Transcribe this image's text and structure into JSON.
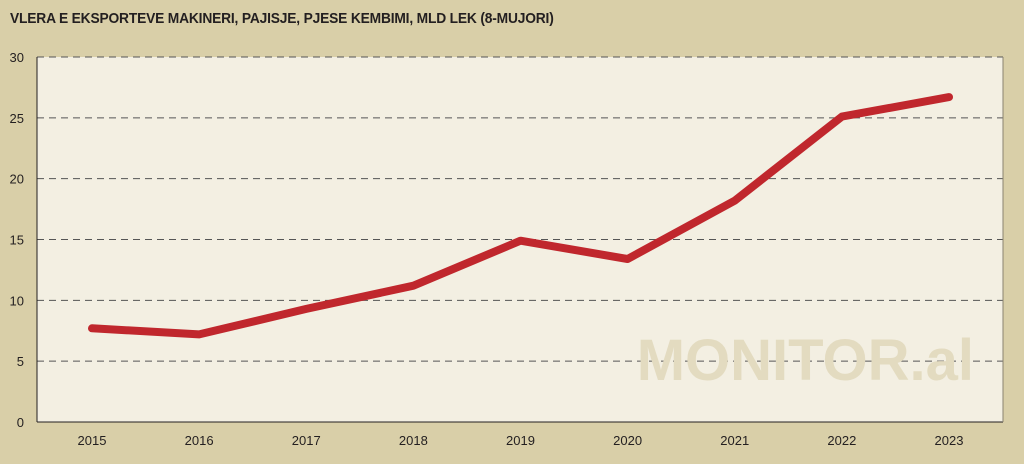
{
  "chart_data": {
    "type": "line",
    "title": "VLERA E EKSPORTEVE MAKINERI, PAJISJE, PJESE KEMBIMI, MLD LEK (8-MUJORI)",
    "xlabel": "",
    "ylabel": "",
    "x": [
      "2015",
      "2016",
      "2017",
      "2018",
      "2019",
      "2020",
      "2021",
      "2022",
      "2023"
    ],
    "series": [
      {
        "values": [
          7.7,
          7.2,
          9.3,
          11.2,
          14.9,
          13.4,
          18.2,
          25.1,
          26.7
        ]
      }
    ],
    "ylim": [
      0,
      30
    ],
    "yticks": [
      0,
      5,
      10,
      15,
      20,
      25,
      30
    ],
    "grid": "horizontal dashed",
    "legend": "none",
    "watermark": "MONITOR.al",
    "colors": {
      "background": "#d9cfa8",
      "plot_area": "#f3efe2",
      "line": "#c0272d",
      "grid": "#555555",
      "watermark": "#e3dbc0"
    }
  }
}
